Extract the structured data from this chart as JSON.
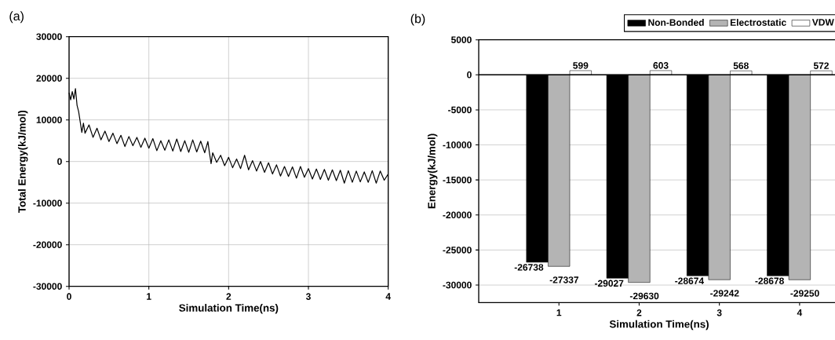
{
  "chart_data": [
    {
      "type": "line",
      "title": "(a)",
      "xlabel": "Simulation Time(ns)",
      "ylabel": "Total Energy(kJ/mol)",
      "xlim": [
        0,
        4
      ],
      "ylim": [
        -30000,
        30000
      ],
      "xticks": [
        0,
        1,
        2,
        3,
        4
      ],
      "yticks": [
        -30000,
        -20000,
        -10000,
        0,
        10000,
        20000,
        30000
      ],
      "grid": true,
      "color": "#000000",
      "x": [
        0.0,
        0.02,
        0.04,
        0.06,
        0.08,
        0.1,
        0.12,
        0.14,
        0.16,
        0.18,
        0.2,
        0.25,
        0.3,
        0.35,
        0.4,
        0.45,
        0.5,
        0.55,
        0.6,
        0.65,
        0.7,
        0.75,
        0.8,
        0.85,
        0.9,
        0.95,
        1.0,
        1.05,
        1.1,
        1.15,
        1.2,
        1.25,
        1.3,
        1.35,
        1.4,
        1.45,
        1.5,
        1.55,
        1.6,
        1.65,
        1.7,
        1.74,
        1.76,
        1.77,
        1.78,
        1.8,
        1.85,
        1.9,
        1.95,
        2.0,
        2.05,
        2.1,
        2.15,
        2.2,
        2.25,
        2.3,
        2.35,
        2.4,
        2.45,
        2.5,
        2.55,
        2.6,
        2.65,
        2.7,
        2.75,
        2.8,
        2.85,
        2.9,
        2.95,
        3.0,
        3.05,
        3.1,
        3.15,
        3.2,
        3.25,
        3.3,
        3.35,
        3.4,
        3.45,
        3.5,
        3.55,
        3.6,
        3.65,
        3.7,
        3.75,
        3.8,
        3.85,
        3.9,
        3.95,
        4.0
      ],
      "values": [
        16500,
        14800,
        16800,
        15000,
        17500,
        13500,
        12000,
        9500,
        7000,
        9200,
        6800,
        8800,
        5800,
        8000,
        5200,
        7300,
        4800,
        6800,
        4300,
        6300,
        3600,
        6000,
        3800,
        5800,
        3400,
        5600,
        3200,
        5500,
        2600,
        5000,
        2700,
        5200,
        2500,
        5400,
        2400,
        5000,
        2200,
        5200,
        2300,
        4900,
        2100,
        4800,
        2000,
        800,
        -500,
        2100,
        -200,
        1500,
        -1000,
        1000,
        -1500,
        600,
        -1700,
        1500,
        -2000,
        200,
        -2300,
        0,
        -2600,
        -300,
        -3000,
        -800,
        -3500,
        -1200,
        -3600,
        -1300,
        -4000,
        -1200,
        -3800,
        -1700,
        -4200,
        -1800,
        -4300,
        -1900,
        -4500,
        -2000,
        -4600,
        -2100,
        -5200,
        -2200,
        -5000,
        -2300,
        -4900,
        -2500,
        -5000,
        -2200,
        -5200,
        -2300,
        -4500,
        -3000
      ]
    },
    {
      "type": "bar",
      "title": "(b)",
      "xlabel": "Simulation Time(ns)",
      "ylabel": "Energy(kJ/mol)",
      "categories": [
        "1",
        "2",
        "3",
        "4"
      ],
      "ylim": [
        -32500,
        5000
      ],
      "yticks": [
        -30000,
        -25000,
        -20000,
        -15000,
        -10000,
        -5000,
        0,
        5000
      ],
      "grid": "y",
      "legend": "top",
      "data_labels": true,
      "series": [
        {
          "name": "Non-Bonded",
          "color": "#000000",
          "values": [
            -26738,
            -29027,
            -28674,
            -28678
          ]
        },
        {
          "name": "Electrostatic",
          "color": "#b4b4b4",
          "values": [
            -27337,
            -29630,
            -29242,
            -29250
          ]
        },
        {
          "name": "VDW",
          "color": "#ffffff",
          "values": [
            599,
            603,
            568,
            572
          ]
        }
      ]
    }
  ]
}
